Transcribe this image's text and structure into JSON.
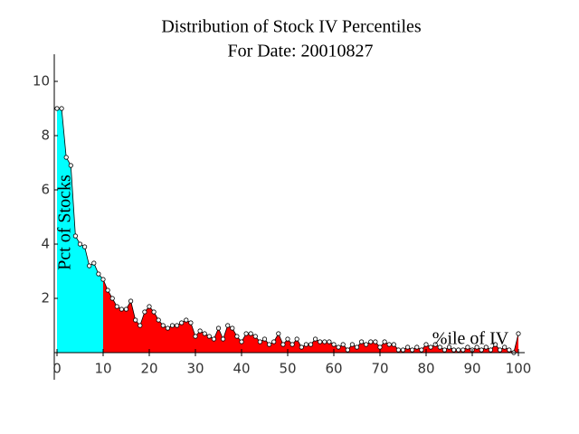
{
  "chart_data": {
    "type": "area",
    "title": "Distribution of Stock IV Percentiles",
    "subtitle": "For Date: 20010827",
    "x_label": "%ile of IV",
    "y_label": "Pct of Stocks",
    "x": [
      0,
      1,
      2,
      3,
      4,
      5,
      6,
      7,
      8,
      9,
      10,
      11,
      12,
      13,
      14,
      15,
      16,
      17,
      18,
      19,
      20,
      21,
      22,
      23,
      24,
      25,
      26,
      27,
      28,
      29,
      30,
      31,
      32,
      33,
      34,
      35,
      36,
      37,
      38,
      39,
      40,
      41,
      42,
      43,
      44,
      45,
      46,
      47,
      48,
      49,
      50,
      51,
      52,
      53,
      54,
      55,
      56,
      57,
      58,
      59,
      60,
      61,
      62,
      63,
      64,
      65,
      66,
      67,
      68,
      69,
      70,
      71,
      72,
      73,
      74,
      75,
      76,
      77,
      78,
      79,
      80,
      81,
      82,
      83,
      84,
      85,
      86,
      87,
      88,
      89,
      90,
      91,
      92,
      93,
      94,
      95,
      96,
      97,
      98,
      99,
      100
    ],
    "values": [
      9.0,
      9.0,
      7.2,
      6.9,
      4.3,
      4.0,
      3.9,
      3.2,
      3.3,
      2.9,
      2.7,
      2.3,
      2.0,
      1.7,
      1.6,
      1.6,
      1.9,
      1.2,
      1.0,
      1.5,
      1.7,
      1.5,
      1.2,
      1.0,
      0.9,
      1.0,
      1.0,
      1.1,
      1.2,
      1.1,
      0.6,
      0.8,
      0.7,
      0.6,
      0.5,
      0.9,
      0.5,
      1.0,
      0.9,
      0.6,
      0.4,
      0.7,
      0.7,
      0.6,
      0.4,
      0.5,
      0.3,
      0.4,
      0.7,
      0.3,
      0.5,
      0.3,
      0.5,
      0.2,
      0.3,
      0.3,
      0.5,
      0.4,
      0.4,
      0.4,
      0.3,
      0.2,
      0.3,
      0.1,
      0.3,
      0.2,
      0.4,
      0.3,
      0.4,
      0.4,
      0.2,
      0.4,
      0.3,
      0.3,
      0.1,
      0.1,
      0.2,
      0.1,
      0.2,
      0.1,
      0.3,
      0.2,
      0.3,
      0.2,
      0.1,
      0.2,
      0.1,
      0.1,
      0.1,
      0.2,
      0.1,
      0.2,
      0.1,
      0.2,
      0.1,
      0.3,
      0.1,
      0.2,
      0.1,
      0.0,
      0.7
    ],
    "fill_colors": [
      "#00ffff",
      "#ff0000"
    ],
    "color_break": 10,
    "xlim": [
      0,
      100
    ],
    "ylim": [
      0,
      11
    ],
    "xticks": [
      0,
      10,
      20,
      30,
      40,
      50,
      60,
      70,
      80,
      90,
      100
    ],
    "yticks": [
      2,
      4,
      6,
      8,
      10
    ]
  }
}
